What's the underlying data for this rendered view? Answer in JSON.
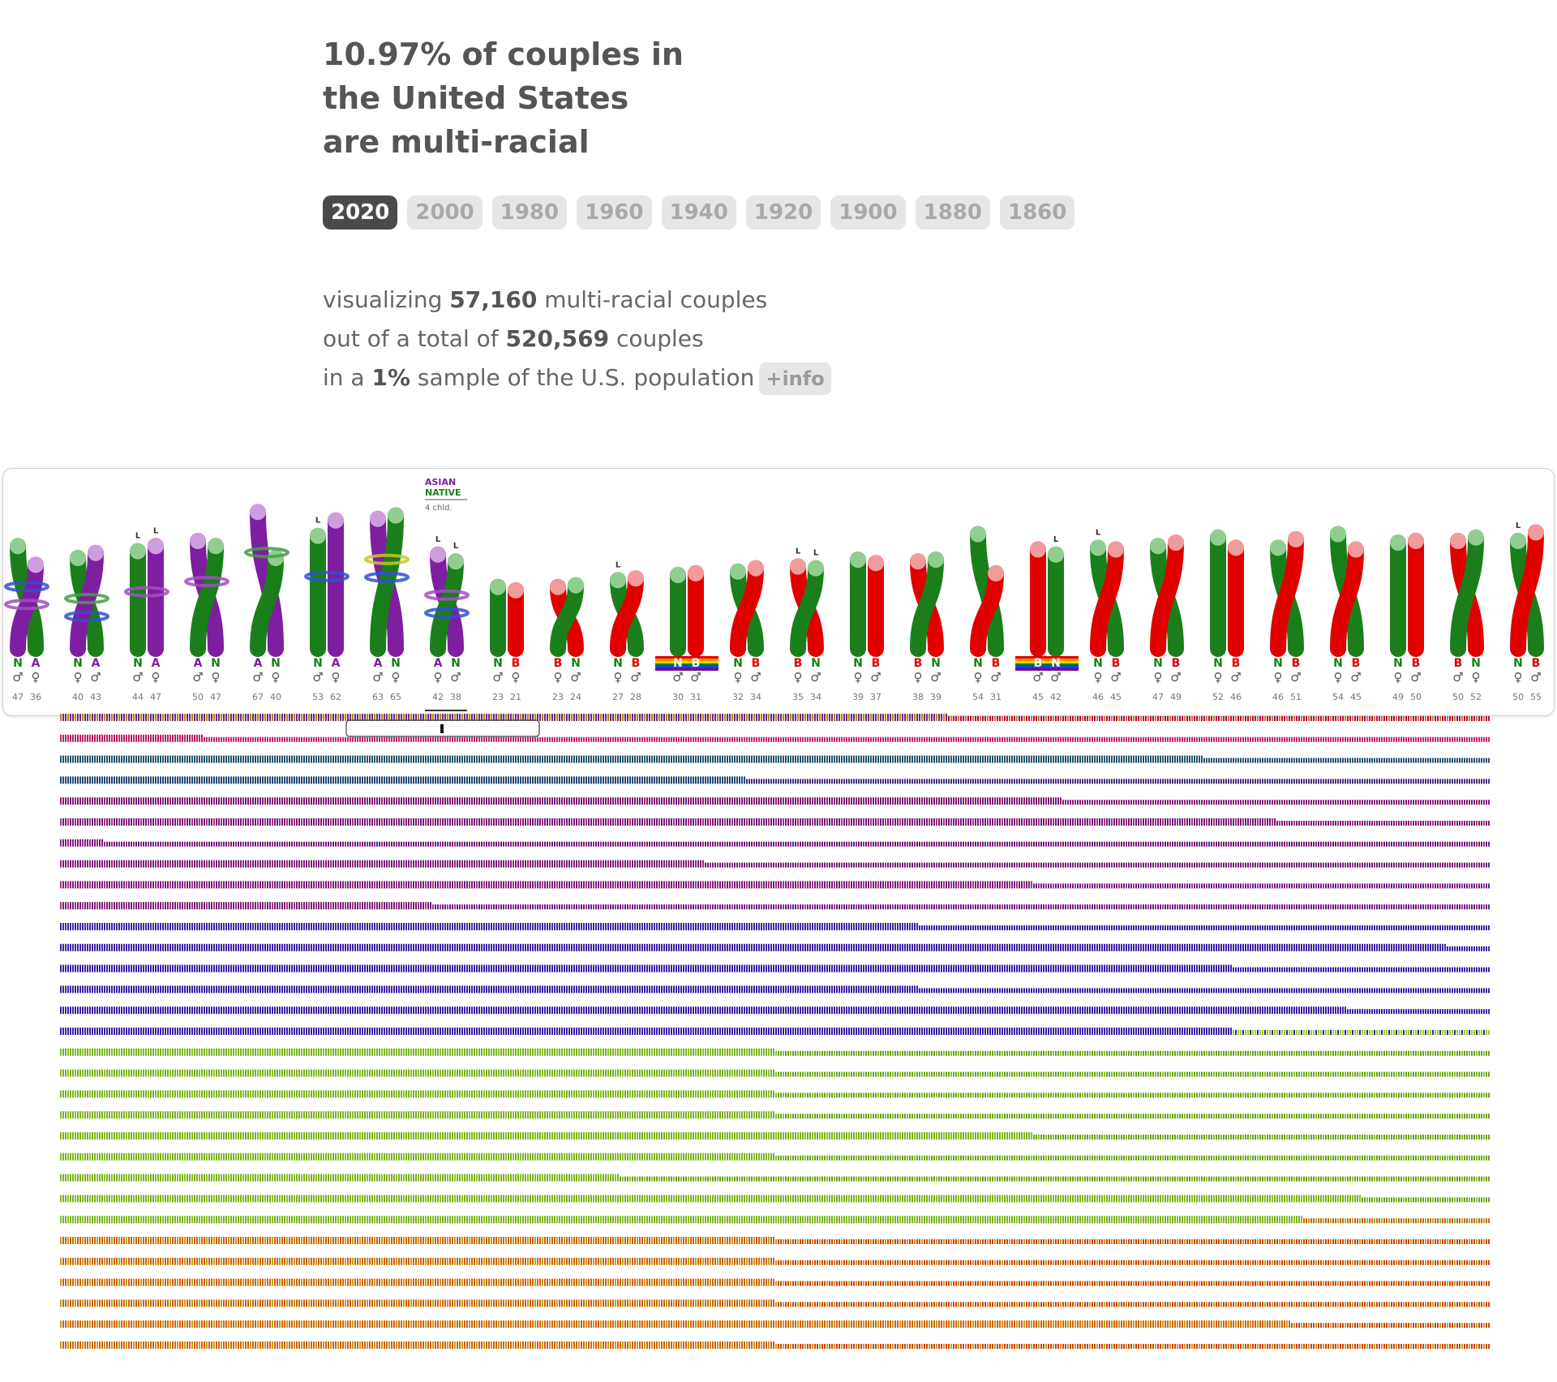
{
  "headline": {
    "line1": "10.97% of couples in",
    "line2": "the United States",
    "line3": "are multi-racial"
  },
  "years": [
    "2020",
    "2000",
    "1980",
    "1960",
    "1940",
    "1920",
    "1900",
    "1880",
    "1860"
  ],
  "selected_year": "2020",
  "summary": {
    "line1_pre": "visualizing ",
    "line1_num": "57,160",
    "line1_post": " multi-racial couples",
    "line2_pre": "out of a total of ",
    "line2_num": "520,569",
    "line2_post": " couples",
    "line3_pre": "in a ",
    "line3_num": "1%",
    "line3_post": " sample of the U.S. population",
    "info_label": "+info"
  },
  "colors": {
    "native": "#1a7f1a",
    "native_top": "#8fce8f",
    "asian": "#7d1fa0",
    "asian_top": "#cf9ce0",
    "black": "#e00000",
    "black_top": "#f29b9b",
    "ring_blue": "#3050d0",
    "ring_purple": "#a050c0",
    "ring_green": "#40a040",
    "ring_yellow": "#c8c820"
  },
  "tooltip": {
    "line1": "ASIAN",
    "line2": "NATIVE",
    "children": "4 chld."
  },
  "couples": [
    {
      "r1": "N",
      "r2": "A",
      "s1": "♂",
      "s2": "♀",
      "a1": "47",
      "a2": "36",
      "l1": false,
      "l2": false,
      "rings": [
        "blue",
        "purple"
      ]
    },
    {
      "r1": "N",
      "r2": "A",
      "s1": "♀",
      "s2": "♂",
      "a1": "40",
      "a2": "43",
      "l1": false,
      "l2": false,
      "rings": [
        "green",
        "blue"
      ]
    },
    {
      "r1": "N",
      "r2": "A",
      "s1": "♂",
      "s2": "♀",
      "a1": "44",
      "a2": "47",
      "l1": true,
      "l2": true,
      "rings": [
        "purple"
      ]
    },
    {
      "r1": "A",
      "r2": "N",
      "s1": "♂",
      "s2": "♀",
      "a1": "50",
      "a2": "47",
      "l1": false,
      "l2": false,
      "rings": [
        "purple"
      ]
    },
    {
      "r1": "A",
      "r2": "N",
      "s1": "♂",
      "s2": "♀",
      "a1": "67",
      "a2": "40",
      "l1": false,
      "l2": false,
      "rings": [
        "green"
      ]
    },
    {
      "r1": "N",
      "r2": "A",
      "s1": "♂",
      "s2": "♀",
      "a1": "53",
      "a2": "62",
      "l1": true,
      "l2": false,
      "rings": [
        "blue"
      ]
    },
    {
      "r1": "A",
      "r2": "N",
      "s1": "♂",
      "s2": "♀",
      "a1": "63",
      "a2": "65",
      "l1": false,
      "l2": false,
      "rings": [
        "yellow",
        "blue"
      ]
    },
    {
      "r1": "A",
      "r2": "N",
      "s1": "♀",
      "s2": "♂",
      "a1": "42",
      "a2": "38",
      "l1": true,
      "l2": true,
      "rings": [
        "purple",
        "blue"
      ],
      "selected": true
    },
    {
      "r1": "N",
      "r2": "B",
      "s1": "♂",
      "s2": "♀",
      "a1": "23",
      "a2": "21",
      "l1": false,
      "l2": false,
      "rings": []
    },
    {
      "r1": "B",
      "r2": "N",
      "s1": "♀",
      "s2": "♂",
      "a1": "23",
      "a2": "24",
      "l1": false,
      "l2": false,
      "rings": []
    },
    {
      "r1": "N",
      "r2": "B",
      "s1": "♀",
      "s2": "♂",
      "a1": "27",
      "a2": "28",
      "l1": true,
      "l2": false,
      "rings": []
    },
    {
      "r1": "N",
      "r2": "B",
      "s1": "♂",
      "s2": "♂",
      "a1": "30",
      "a2": "31",
      "l1": false,
      "l2": false,
      "rings": [],
      "rainbow": true
    },
    {
      "r1": "N",
      "r2": "B",
      "s1": "♀",
      "s2": "♂",
      "a1": "32",
      "a2": "34",
      "l1": false,
      "l2": false,
      "rings": []
    },
    {
      "r1": "B",
      "r2": "N",
      "s1": "♀",
      "s2": "♂",
      "a1": "35",
      "a2": "34",
      "l1": true,
      "l2": true,
      "rings": []
    },
    {
      "r1": "N",
      "r2": "B",
      "s1": "♀",
      "s2": "♂",
      "a1": "39",
      "a2": "37",
      "l1": false,
      "l2": false,
      "rings": []
    },
    {
      "r1": "B",
      "r2": "N",
      "s1": "♀",
      "s2": "♂",
      "a1": "38",
      "a2": "39",
      "l1": false,
      "l2": false,
      "rings": []
    },
    {
      "r1": "N",
      "r2": "B",
      "s1": "♀",
      "s2": "♂",
      "a1": "54",
      "a2": "31",
      "l1": false,
      "l2": false,
      "rings": []
    },
    {
      "r1": "B",
      "r2": "N",
      "s1": "♂",
      "s2": "♂",
      "a1": "45",
      "a2": "42",
      "l1": false,
      "l2": true,
      "rings": [],
      "rainbow": true
    },
    {
      "r1": "N",
      "r2": "B",
      "s1": "♀",
      "s2": "♂",
      "a1": "46",
      "a2": "45",
      "l1": true,
      "l2": false,
      "rings": []
    },
    {
      "r1": "N",
      "r2": "B",
      "s1": "♀",
      "s2": "♂",
      "a1": "47",
      "a2": "49",
      "l1": false,
      "l2": false,
      "rings": []
    },
    {
      "r1": "N",
      "r2": "B",
      "s1": "♀",
      "s2": "♂",
      "a1": "52",
      "a2": "46",
      "l1": false,
      "l2": false,
      "rings": []
    },
    {
      "r1": "N",
      "r2": "B",
      "s1": "♀",
      "s2": "♂",
      "a1": "46",
      "a2": "51",
      "l1": false,
      "l2": false,
      "rings": []
    },
    {
      "r1": "N",
      "r2": "B",
      "s1": "♀",
      "s2": "♂",
      "a1": "54",
      "a2": "45",
      "l1": false,
      "l2": false,
      "rings": []
    },
    {
      "r1": "N",
      "r2": "B",
      "s1": "♀",
      "s2": "♂",
      "a1": "49",
      "a2": "50",
      "l1": false,
      "l2": false,
      "rings": []
    },
    {
      "r1": "B",
      "r2": "N",
      "s1": "♂",
      "s2": "♀",
      "a1": "50",
      "a2": "52",
      "l1": false,
      "l2": false,
      "rings": []
    },
    {
      "r1": "N",
      "r2": "B",
      "s1": "♀",
      "s2": "♂",
      "a1": "50",
      "a2": "55",
      "l1": true,
      "l2": false,
      "rings": []
    }
  ],
  "grid_rows": [
    {
      "c1": "#6a2f7e",
      "c2": "#b8860b",
      "c3": "#c00050",
      "split": 0.62
    },
    {
      "c1": "#c01860",
      "c2": "#b0306a",
      "c3": "#d02070",
      "split": 0.1
    },
    {
      "c1": "#2a5060",
      "c2": "#1e6070",
      "c3": "#304870",
      "split": 0.8
    },
    {
      "c1": "#254a70",
      "c2": "#2a4070",
      "c3": "#5a2880",
      "split": 0.48
    },
    {
      "c1": "#6a2080",
      "c2": "#a02060",
      "c3": "#7a1e80",
      "split": 0.7
    },
    {
      "c1": "#6a2080",
      "c2": "#b03070",
      "c3": "#7a1e80",
      "split": 0.85
    },
    {
      "c1": "#702080",
      "c2": "#a02870",
      "c3": "#602080",
      "split": 0.03
    },
    {
      "c1": "#702080",
      "c2": "#a02870",
      "c3": "#602080",
      "split": 0.45
    },
    {
      "c1": "#702080",
      "c2": "#b03070",
      "c3": "#602090",
      "split": 0.68
    },
    {
      "c1": "#702080",
      "c2": "#b03070",
      "c3": "#5a2090",
      "split": 0.26
    },
    {
      "c1": "#4a2aa0",
      "c2": "#3a22a0",
      "c3": "#4020a0",
      "split": 0.6
    },
    {
      "c1": "#4020a8",
      "c2": "#3820a0",
      "c3": "#4020a8",
      "split": 0.97
    },
    {
      "c1": "#4020a8",
      "c2": "#3820a0",
      "c3": "#4020a8",
      "split": 0.82
    },
    {
      "c1": "#4020a8",
      "c2": "#3820a0",
      "c3": "#4020a8",
      "split": 0.6
    },
    {
      "c1": "#4020a8",
      "c2": "#3820a0",
      "c3": "#4020a8",
      "split": 0.9
    },
    {
      "c1": "#4020a8",
      "c2": "#3820a0",
      "c3": "#9acd20",
      "split": 0.82
    },
    {
      "c1": "#7ab020",
      "c2": "#8ac020",
      "c3": "#6aa020",
      "split": 0.5
    },
    {
      "c1": "#7ab020",
      "c2": "#8ac020",
      "c3": "#6aa020",
      "split": 0.5
    },
    {
      "c1": "#7ab020",
      "c2": "#8ac020",
      "c3": "#6aa020",
      "split": 0.5
    },
    {
      "c1": "#7ab020",
      "c2": "#8ac020",
      "c3": "#6aa020",
      "split": 0.5
    },
    {
      "c1": "#7ab020",
      "c2": "#8ac020",
      "c3": "#6aa020",
      "split": 0.68
    },
    {
      "c1": "#7ab020",
      "c2": "#8ac020",
      "c3": "#6aa020",
      "split": 0.5
    },
    {
      "c1": "#7ab020",
      "c2": "#8ac020",
      "c3": "#6aa020",
      "split": 0.39
    },
    {
      "c1": "#7ab020",
      "c2": "#8ac020",
      "c3": "#6aa020",
      "split": 0.91
    },
    {
      "c1": "#7ab020",
      "c2": "#8ac020",
      "c3": "#d06010",
      "split": 0.87
    },
    {
      "c1": "#d06010",
      "c2": "#c0a010",
      "c3": "#d04010",
      "split": 0.5
    },
    {
      "c1": "#d06010",
      "c2": "#c0a010",
      "c3": "#d04010",
      "split": 0.5
    },
    {
      "c1": "#d06010",
      "c2": "#c0a010",
      "c3": "#d04010",
      "split": 0.5
    },
    {
      "c1": "#d06010",
      "c2": "#c0a010",
      "c3": "#d04010",
      "split": 0.5
    },
    {
      "c1": "#d06010",
      "c2": "#c0a010",
      "c3": "#d04010",
      "split": 0.86
    },
    {
      "c1": "#d06010",
      "c2": "#c0a010",
      "c3": "#d04010",
      "split": 0.5
    }
  ]
}
